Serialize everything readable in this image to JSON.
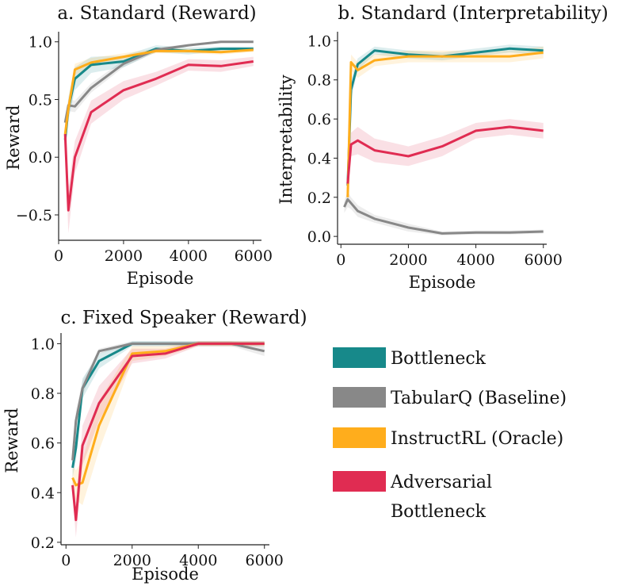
{
  "figure": {
    "legend": [
      {
        "name": "Bottleneck",
        "color": "#17898a"
      },
      {
        "name": "TabularQ (Baseline)",
        "color": "#888888"
      },
      {
        "name": "InstructRL (Oracle)",
        "color": "#ffad1c"
      },
      {
        "name": "Adversarial Bottleneck",
        "line1": "Adversarial",
        "line2": "Bottleneck",
        "color": "#e02c52"
      }
    ]
  },
  "chart_data": [
    {
      "id": "a",
      "type": "line",
      "title": "a. Standard (Reward)",
      "xlabel": "Episode",
      "ylabel": "Reward",
      "xlim": [
        0,
        6250
      ],
      "ylim": [
        -0.72,
        1.06
      ],
      "xticks": [
        0,
        2000,
        4000,
        6000
      ],
      "xtick_labels": [
        "0",
        "2000",
        "4000",
        "6000"
      ],
      "yticks": [
        -0.5,
        0.0,
        0.5,
        1.0
      ],
      "ytick_labels": [
        "−0.5",
        "0.0",
        "0.5",
        "1.0"
      ],
      "series": [
        {
          "name": "Bottleneck",
          "color": "#17898a",
          "x": [
            200,
            300,
            500,
            1000,
            2000,
            3000,
            4000,
            5000,
            6000
          ],
          "y": [
            0.15,
            0.42,
            0.68,
            0.8,
            0.83,
            0.94,
            0.92,
            0.94,
            0.94
          ],
          "err": [
            0.08,
            0.1,
            0.1,
            0.07,
            0.05,
            0.03,
            0.03,
            0.02,
            0.02
          ]
        },
        {
          "name": "TabularQ (Baseline)",
          "color": "#888888",
          "x": [
            200,
            300,
            500,
            1000,
            2000,
            3000,
            4000,
            5000,
            6000
          ],
          "y": [
            0.3,
            0.45,
            0.44,
            0.6,
            0.81,
            0.93,
            0.97,
            1.0,
            1.0
          ],
          "err": [
            0.04,
            0.05,
            0.05,
            0.04,
            0.03,
            0.02,
            0.01,
            0.01,
            0.01
          ]
        },
        {
          "name": "InstructRL (Oracle)",
          "color": "#ffad1c",
          "x": [
            200,
            300,
            500,
            1000,
            2000,
            3000,
            4000,
            5000,
            6000
          ],
          "y": [
            0.2,
            0.42,
            0.76,
            0.82,
            0.87,
            0.92,
            0.92,
            0.91,
            0.93
          ],
          "err": [
            0.06,
            0.07,
            0.05,
            0.04,
            0.03,
            0.02,
            0.02,
            0.02,
            0.02
          ]
        },
        {
          "name": "Adversarial Bottleneck",
          "color": "#e02c52",
          "x": [
            200,
            300,
            500,
            1000,
            2000,
            3000,
            4000,
            5000,
            6000
          ],
          "y": [
            0.2,
            -0.46,
            0.0,
            0.39,
            0.58,
            0.68,
            0.8,
            0.79,
            0.83
          ],
          "err": [
            0.12,
            0.2,
            0.14,
            0.1,
            0.08,
            0.06,
            0.05,
            0.05,
            0.04
          ]
        }
      ]
    },
    {
      "id": "b",
      "type": "line",
      "title": "b. Standard (Interpretability)",
      "xlabel": "Episode",
      "ylabel": "Interpretability",
      "xlim": [
        -100,
        6100
      ],
      "ylim": [
        -0.04,
        1.03
      ],
      "xticks": [
        0,
        2000,
        4000,
        6000
      ],
      "xtick_labels": [
        "0",
        "2000",
        "4000",
        "6000"
      ],
      "yticks": [
        0.0,
        0.2,
        0.4,
        0.6,
        0.8,
        1.0
      ],
      "ytick_labels": [
        "0.0",
        "0.2",
        "0.4",
        "0.6",
        "0.8",
        "1.0"
      ],
      "series": [
        {
          "name": "Bottleneck",
          "color": "#17898a",
          "x": [
            200,
            300,
            500,
            1000,
            2000,
            3000,
            4000,
            5000,
            6000
          ],
          "y": [
            0.26,
            0.75,
            0.88,
            0.95,
            0.93,
            0.92,
            0.94,
            0.96,
            0.95
          ],
          "err": [
            0.05,
            0.05,
            0.03,
            0.02,
            0.02,
            0.02,
            0.02,
            0.02,
            0.02
          ]
        },
        {
          "name": "TabularQ (Baseline)",
          "color": "#888888",
          "x": [
            100,
            200,
            300,
            500,
            1000,
            2000,
            3000,
            4000,
            5000,
            6000
          ],
          "y": [
            0.15,
            0.19,
            0.17,
            0.13,
            0.09,
            0.045,
            0.015,
            0.02,
            0.02,
            0.025
          ],
          "err": [
            0.03,
            0.04,
            0.03,
            0.03,
            0.02,
            0.02,
            0.01,
            0.01,
            0.01,
            0.01
          ]
        },
        {
          "name": "InstructRL (Oracle)",
          "color": "#ffad1c",
          "x": [
            200,
            300,
            500,
            1000,
            2000,
            3000,
            4000,
            5000,
            6000
          ],
          "y": [
            0.2,
            0.89,
            0.85,
            0.9,
            0.92,
            0.92,
            0.92,
            0.92,
            0.94
          ],
          "err": [
            0.05,
            0.04,
            0.04,
            0.03,
            0.03,
            0.03,
            0.03,
            0.03,
            0.03
          ]
        },
        {
          "name": "Adversarial Bottleneck",
          "color": "#e02c52",
          "x": [
            200,
            300,
            500,
            1000,
            2000,
            3000,
            4000,
            5000,
            6000
          ],
          "y": [
            0.27,
            0.47,
            0.49,
            0.44,
            0.41,
            0.46,
            0.54,
            0.56,
            0.54
          ],
          "err": [
            0.05,
            0.06,
            0.07,
            0.06,
            0.05,
            0.05,
            0.04,
            0.04,
            0.04
          ]
        }
      ]
    },
    {
      "id": "c",
      "type": "line",
      "title": "c. Fixed Speaker (Reward)",
      "xlabel": "Episode",
      "ylabel": "Reward",
      "xlim": [
        -150,
        6150
      ],
      "ylim": [
        0.19,
        1.03
      ],
      "xticks": [
        0,
        2000,
        4000,
        6000
      ],
      "xtick_labels": [
        "0",
        "2000",
        "4000",
        "6000"
      ],
      "yticks": [
        0.2,
        0.4,
        0.6,
        0.8,
        1.0
      ],
      "ytick_labels": [
        "0.2",
        "0.4",
        "0.6",
        "0.8",
        "1.0"
      ],
      "series": [
        {
          "name": "Bottleneck",
          "color": "#17898a",
          "x": [
            200,
            300,
            500,
            1000,
            2000,
            3000,
            4000,
            5000,
            6000
          ],
          "y": [
            0.5,
            0.58,
            0.82,
            0.93,
            1.0,
            1.0,
            1.0,
            1.0,
            1.0
          ],
          "err": [
            0.04,
            0.05,
            0.04,
            0.03,
            0.01,
            0.01,
            0.01,
            0.01,
            0.01
          ]
        },
        {
          "name": "TabularQ (Baseline)",
          "color": "#888888",
          "x": [
            200,
            300,
            500,
            1000,
            2000,
            3000,
            4000,
            5000,
            6000
          ],
          "y": [
            0.53,
            0.69,
            0.82,
            0.97,
            1.0,
            1.0,
            1.0,
            1.0,
            0.97
          ],
          "err": [
            0.03,
            0.04,
            0.03,
            0.01,
            0.01,
            0.01,
            0.01,
            0.01,
            0.02
          ]
        },
        {
          "name": "InstructRL (Oracle)",
          "color": "#ffad1c",
          "x": [
            200,
            300,
            500,
            1000,
            2000,
            3000,
            4000,
            5000,
            6000
          ],
          "y": [
            0.46,
            0.43,
            0.44,
            0.67,
            0.96,
            0.97,
            1.0,
            1.0,
            1.0
          ],
          "err": [
            0.05,
            0.06,
            0.09,
            0.1,
            0.03,
            0.02,
            0.01,
            0.01,
            0.01
          ]
        },
        {
          "name": "Adversarial Bottleneck",
          "color": "#e02c52",
          "x": [
            200,
            300,
            500,
            1000,
            2000,
            3000,
            4000,
            5000,
            6000
          ],
          "y": [
            0.43,
            0.29,
            0.59,
            0.76,
            0.95,
            0.96,
            1.0,
            1.0,
            1.0
          ],
          "err": [
            0.04,
            0.07,
            0.08,
            0.07,
            0.03,
            0.02,
            0.01,
            0.01,
            0.01
          ]
        }
      ]
    }
  ]
}
